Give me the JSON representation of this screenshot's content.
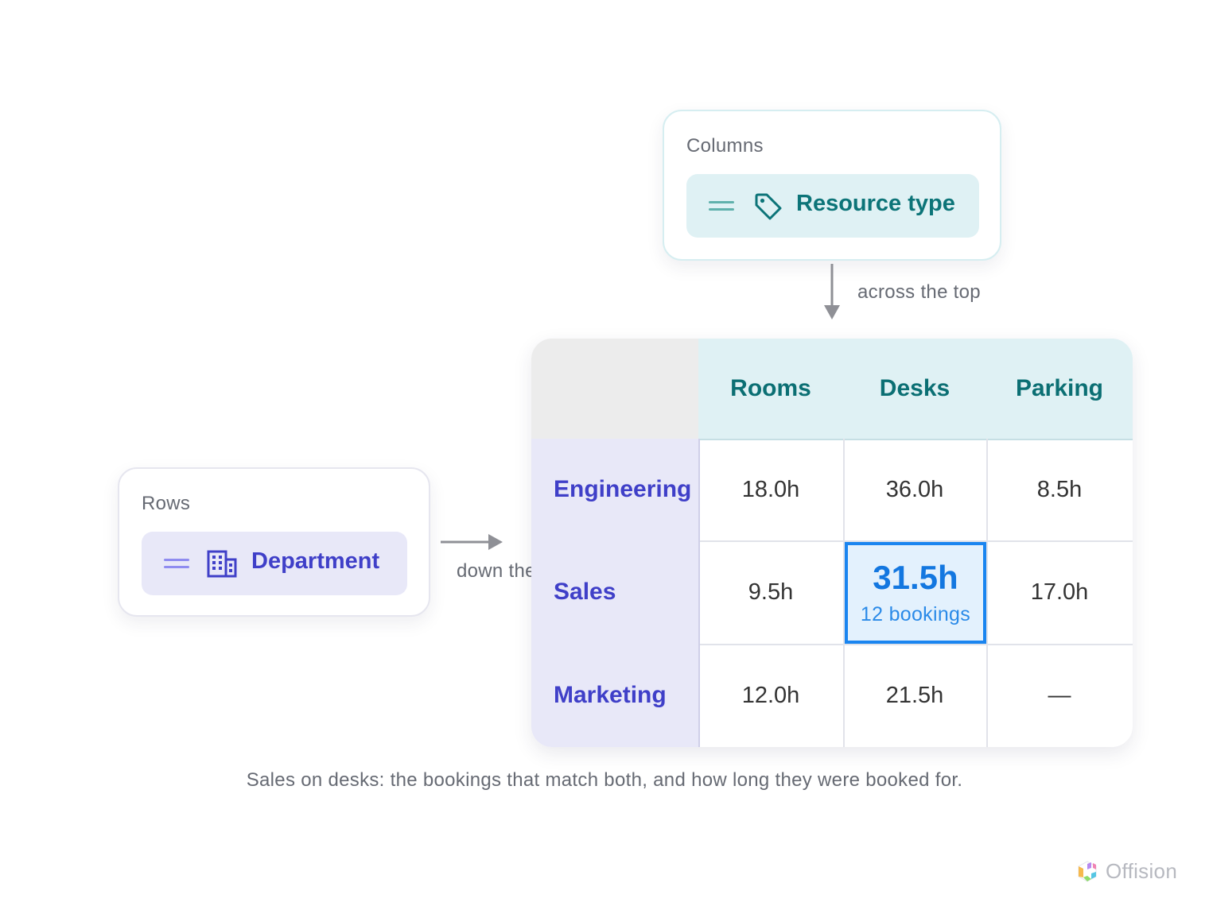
{
  "columns_card": {
    "label": "Columns",
    "chip_label": "Resource type",
    "icon": "tag-icon"
  },
  "rows_card": {
    "label": "Rows",
    "chip_label": "Department",
    "icon": "building-icon"
  },
  "arrows": {
    "top_label": "across the top",
    "side_label": "down the side"
  },
  "pivot": {
    "columns": [
      "Rooms",
      "Desks",
      "Parking"
    ],
    "rows": [
      {
        "label": "Engineering",
        "values": [
          "18.0h",
          "36.0h",
          "8.5h"
        ]
      },
      {
        "label": "Sales",
        "values": [
          "9.5h",
          "31.5h",
          "17.0h"
        ]
      },
      {
        "label": "Marketing",
        "values": [
          "12.0h",
          "21.5h",
          "—"
        ]
      }
    ],
    "highlight": {
      "value": "31.5h",
      "sub": "12 bookings"
    }
  },
  "caption": "Sales on desks: the bookings that match both, and how long they were booked for.",
  "brand": "Offision",
  "colors": {
    "teal": "#0b6f73",
    "indigo": "#3f3fc8",
    "highlight": "#1a85f0"
  }
}
